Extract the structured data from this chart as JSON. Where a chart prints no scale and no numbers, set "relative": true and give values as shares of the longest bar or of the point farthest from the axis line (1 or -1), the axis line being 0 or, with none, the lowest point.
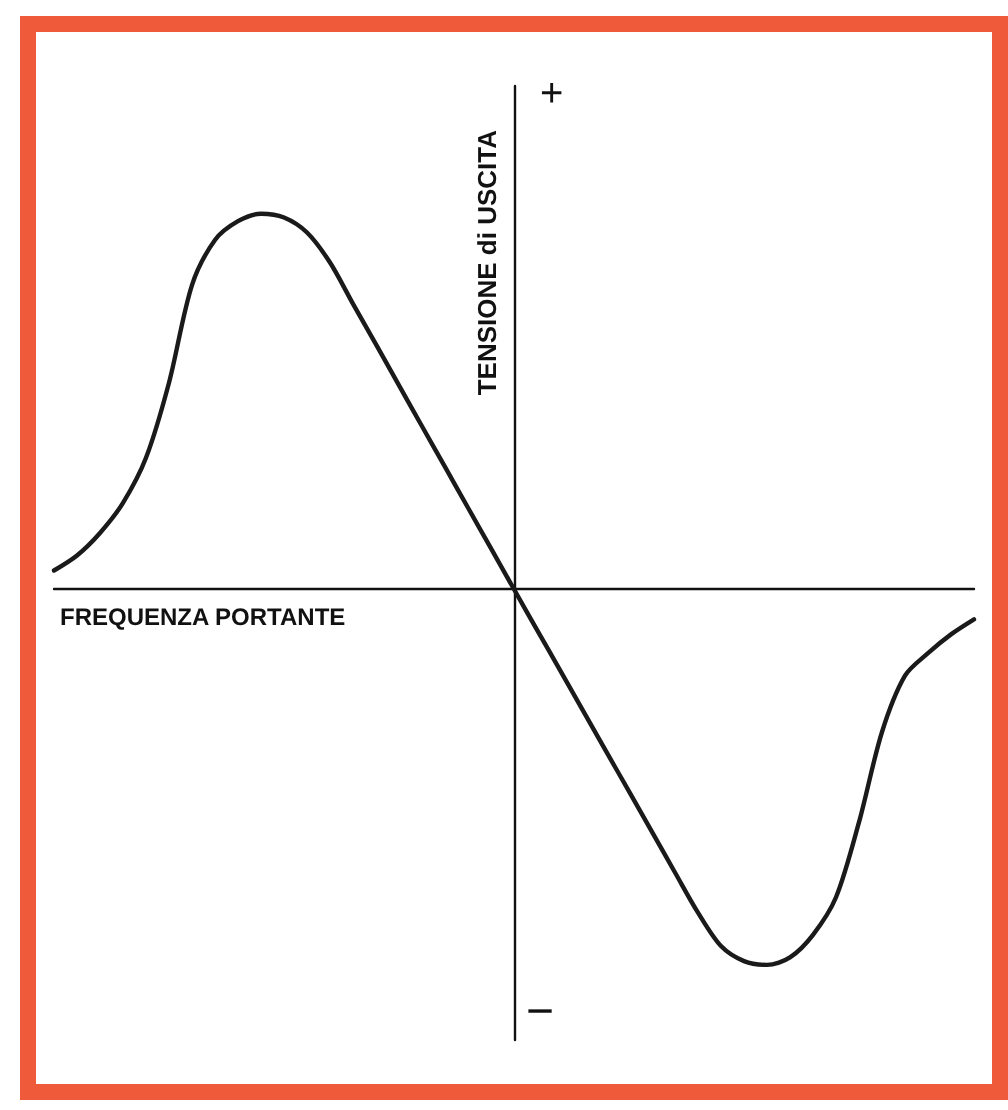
{
  "chart_data": {
    "type": "line",
    "relative": true,
    "xlabel": "FREQUENZA PORTANTE",
    "ylabel": "TENSIONE di USCITA",
    "annotations": [
      "+",
      "−"
    ],
    "categories": [
      null,
      null,
      null,
      null,
      null,
      null,
      null,
      null,
      null,
      null,
      null,
      null,
      null,
      null,
      null,
      null,
      null,
      null,
      null,
      null,
      null,
      null,
      null,
      null,
      null,
      null,
      null,
      null,
      null,
      null,
      null,
      null,
      null,
      null,
      null,
      null,
      null,
      null,
      null,
      null,
      null
    ],
    "series": [
      {
        "color": "#1a1a1a",
        "values": [
          0.05,
          0.09,
          0.15,
          0.23,
          0.35,
          0.55,
          0.81,
          0.93,
          0.98,
          1,
          0.99,
          0.95,
          0.87,
          0.76,
          0.652,
          0.543,
          0.434,
          0.326,
          0.217,
          0.109,
          0,
          -0.108,
          -0.215,
          -0.323,
          -0.431,
          -0.538,
          -0.646,
          -0.754,
          -0.861,
          -0.95,
          -0.99,
          -1,
          -0.98,
          -0.92,
          -0.82,
          -0.62,
          -0.38,
          -0.23,
          -0.17,
          -0.12,
          -0.08
        ]
      }
    ],
    "marker": "none",
    "line_style": "solid"
  }
}
